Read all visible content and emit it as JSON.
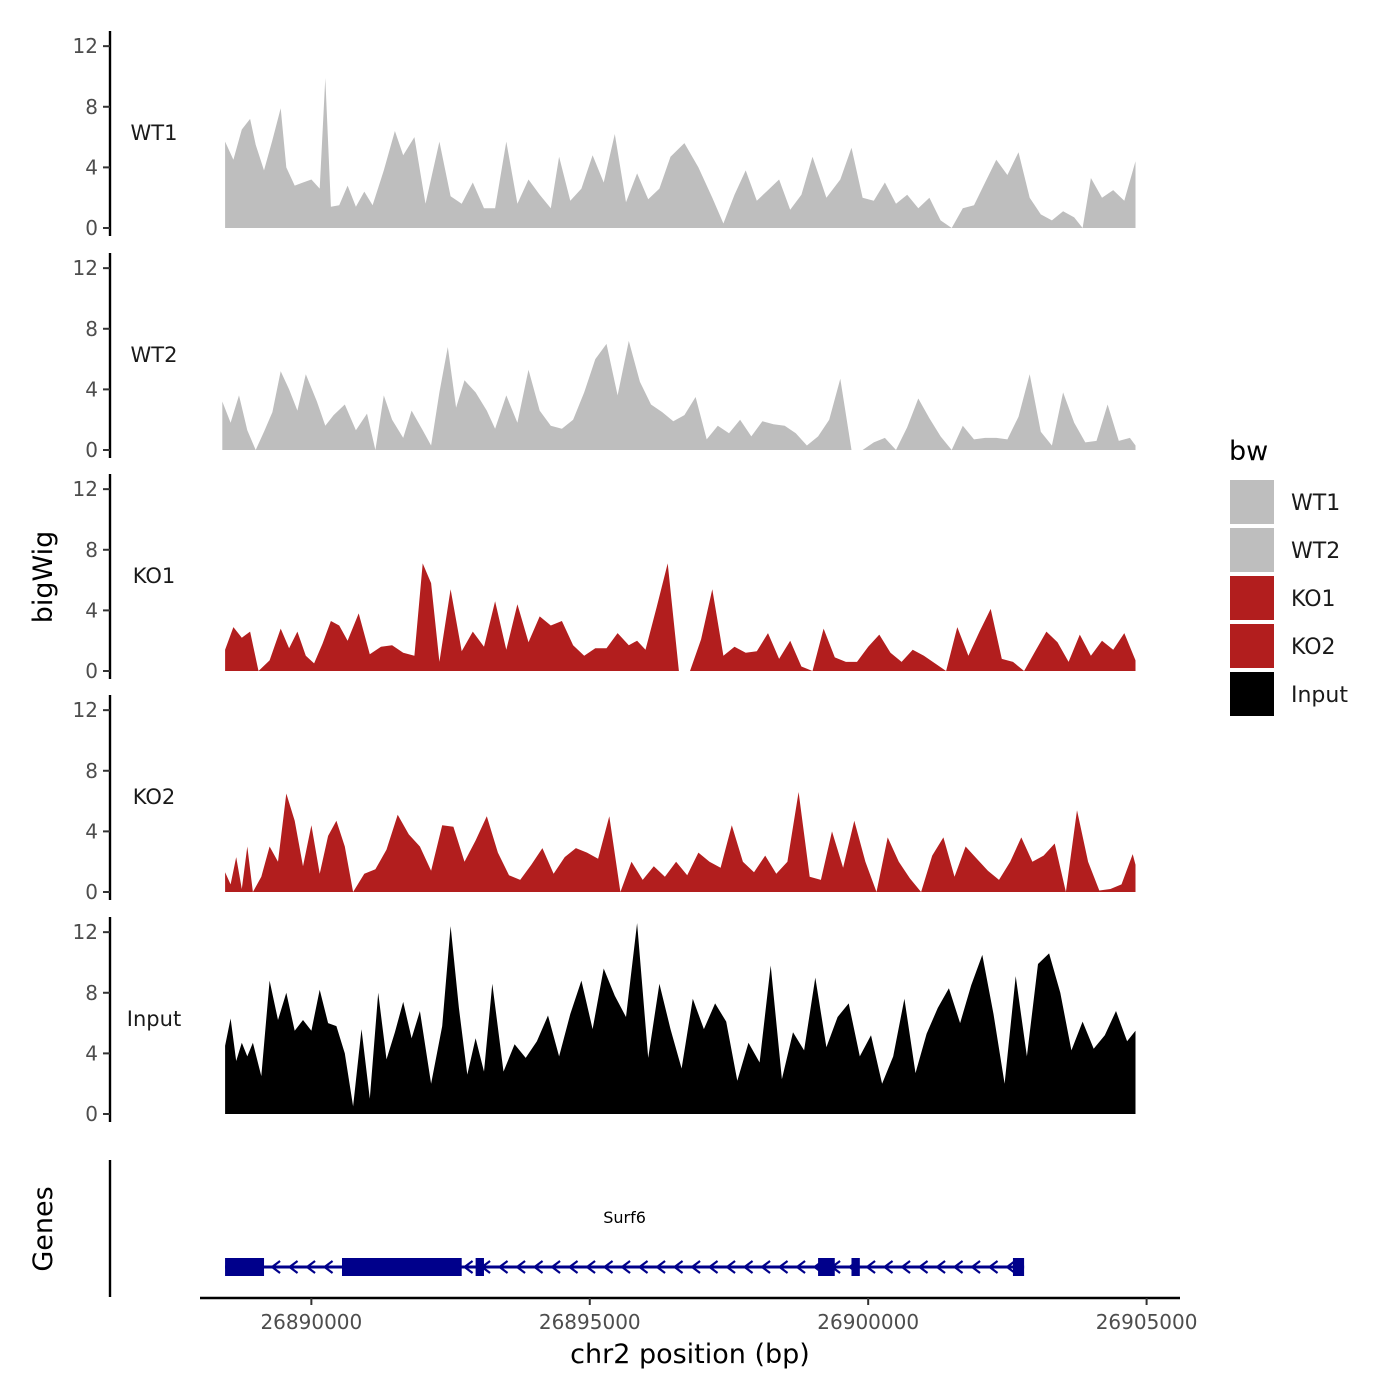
{
  "chart_data": {
    "type": "area",
    "title": "",
    "xlabel": "chr2 position (bp)",
    "ylabel": "bigWig",
    "genes_panel_label": "Genes",
    "xlim": [
      26888000,
      26905600
    ],
    "x_ticks": [
      26890000,
      26895000,
      26900000,
      26905000
    ],
    "x_tick_labels": [
      "26890000",
      "26895000",
      "26900000",
      "26905000"
    ],
    "ylim": [
      0,
      13
    ],
    "y_ticks": [
      0,
      4,
      8,
      12
    ],
    "y_tick_labels": [
      "0",
      "4",
      "8",
      "12"
    ],
    "legend": {
      "title": "bw",
      "position": "right",
      "entries": [
        {
          "label": "WT1",
          "color": "#bebebe"
        },
        {
          "label": "WT2",
          "color": "#bebebe"
        },
        {
          "label": "KO1",
          "color": "#b21e1e"
        },
        {
          "label": "KO2",
          "color": "#b21e1e"
        },
        {
          "label": "Input",
          "color": "#000000"
        }
      ]
    },
    "series": [
      {
        "name": "WT1",
        "color": "#bebebe",
        "x": [
          26888450,
          26888600,
          26888750,
          26888900,
          26889000,
          26889150,
          26889300,
          26889450,
          26889550,
          26889700,
          26889850,
          26890000,
          26890150,
          26890250,
          26890350,
          26890500,
          26890650,
          26890800,
          26890950,
          26891100,
          26891300,
          26891500,
          26891650,
          26891850,
          26892050,
          26892300,
          26892500,
          26892700,
          26892900,
          26893100,
          26893300,
          26893500,
          26893700,
          26893900,
          26894100,
          26894300,
          26894450,
          26894650,
          26894850,
          26895050,
          26895250,
          26895450,
          26895650,
          26895850,
          26896050,
          26896250,
          26896450,
          26896700,
          26896950,
          26897200,
          26897400,
          26897600,
          26897800,
          26898000,
          26898200,
          26898400,
          26898600,
          26898800,
          26899000,
          26899250,
          26899500,
          26899700,
          26899900,
          26900100,
          26900300,
          26900500,
          26900700,
          26900900,
          26901100,
          26901300,
          26901500,
          26901700,
          26901900,
          26902100,
          26902300,
          26902500,
          26902700,
          26902900,
          26903100,
          26903300,
          26903500,
          26903700,
          26903850,
          26904000,
          26904200,
          26904400,
          26904600,
          26904800
        ],
        "values": [
          5.7,
          4.5,
          6.5,
          7.2,
          5.5,
          3.8,
          5.8,
          7.9,
          4.0,
          2.8,
          3.0,
          3.2,
          2.6,
          9.9,
          1.4,
          1.5,
          2.8,
          1.4,
          2.4,
          1.5,
          3.8,
          6.4,
          4.8,
          6.0,
          1.6,
          5.7,
          2.1,
          1.6,
          3.0,
          1.3,
          1.3,
          5.7,
          1.6,
          3.2,
          2.2,
          1.3,
          4.7,
          1.8,
          2.6,
          4.8,
          3.0,
          6.2,
          1.7,
          3.6,
          1.9,
          2.6,
          4.7,
          5.6,
          4.0,
          2.0,
          0.3,
          2.2,
          3.8,
          1.8,
          2.5,
          3.2,
          1.2,
          2.2,
          4.7,
          2.0,
          3.2,
          5.3,
          2.0,
          1.8,
          3.0,
          1.6,
          2.2,
          1.3,
          2.0,
          0.5,
          0.0,
          1.3,
          1.5,
          3.0,
          4.5,
          3.5,
          5.0,
          2.0,
          0.9,
          0.5,
          1.1,
          0.7,
          0.0,
          3.3,
          2.0,
          2.5,
          1.8,
          4.4
        ]
      },
      {
        "name": "WT2",
        "color": "#bebebe",
        "x": [
          26888400,
          26888550,
          26888700,
          26888850,
          26889000,
          26889150,
          26889300,
          26889450,
          26889600,
          26889750,
          26889900,
          26890100,
          26890250,
          26890400,
          26890600,
          26890800,
          26891000,
          26891150,
          26891300,
          26891450,
          26891650,
          26891800,
          26892000,
          26892150,
          26892300,
          26892450,
          26892600,
          26892750,
          26892950,
          26893150,
          26893300,
          26893500,
          26893700,
          26893900,
          26894100,
          26894300,
          26894500,
          26894700,
          26894900,
          26895100,
          26895300,
          26895500,
          26895700,
          26895900,
          26896100,
          26896300,
          26896500,
          26896700,
          26896900,
          26897100,
          26897300,
          26897500,
          26897700,
          26897900,
          26898100,
          26898300,
          26898500,
          26898700,
          26898900,
          26899100,
          26899300,
          26899500,
          26899700,
          26899900,
          26900100,
          26900300,
          26900500,
          26900700,
          26900900,
          26901100,
          26901300,
          26901500,
          26901700,
          26901900,
          26902100,
          26902300,
          26902500,
          26902700,
          26902900,
          26903100,
          26903300,
          26903500,
          26903700,
          26903900,
          26904100,
          26904300,
          26904500,
          26904700,
          26904800
        ],
        "values": [
          3.2,
          1.8,
          3.6,
          1.3,
          0.0,
          1.2,
          2.5,
          5.2,
          4.0,
          2.6,
          5.0,
          3.2,
          1.6,
          2.3,
          3.0,
          1.3,
          2.4,
          0.0,
          3.6,
          2.0,
          0.8,
          2.6,
          1.3,
          0.3,
          3.8,
          6.8,
          2.8,
          4.6,
          3.8,
          2.6,
          1.4,
          3.6,
          1.8,
          5.3,
          2.6,
          1.6,
          1.4,
          2.0,
          3.8,
          6.0,
          7.0,
          3.6,
          7.2,
          4.5,
          3.0,
          2.5,
          1.9,
          2.3,
          3.5,
          0.7,
          1.6,
          1.1,
          2.0,
          0.9,
          1.9,
          1.7,
          1.6,
          1.1,
          0.3,
          0.9,
          2.0,
          4.7,
          0.0,
          0.0,
          0.5,
          0.8,
          0.0,
          1.5,
          3.4,
          2.1,
          0.9,
          0.0,
          1.6,
          0.7,
          0.8,
          0.8,
          0.7,
          2.2,
          5.0,
          1.2,
          0.3,
          3.8,
          1.8,
          0.5,
          0.6,
          3.0,
          0.6,
          0.8,
          0.3
        ]
      },
      {
        "name": "KO1",
        "color": "#b21e1e",
        "x": [
          26888450,
          26888600,
          26888750,
          26888900,
          26889050,
          26889250,
          26889450,
          26889600,
          26889750,
          26889900,
          26890050,
          26890200,
          26890350,
          26890500,
          26890650,
          26890850,
          26891050,
          26891250,
          26891450,
          26891650,
          26891850,
          26892000,
          26892150,
          26892300,
          26892500,
          26892700,
          26892900,
          26893100,
          26893300,
          26893500,
          26893700,
          26893900,
          26894100,
          26894300,
          26894500,
          26894700,
          26894900,
          26895100,
          26895300,
          26895500,
          26895700,
          26895850,
          26896000,
          26896200,
          26896400,
          26896600,
          26896800,
          26897000,
          26897200,
          26897400,
          26897600,
          26897800,
          26898000,
          26898200,
          26898400,
          26898600,
          26898800,
          26899000,
          26899200,
          26899400,
          26899600,
          26899800,
          26900000,
          26900200,
          26900400,
          26900600,
          26900800,
          26901000,
          26901200,
          26901400,
          26901600,
          26901800,
          26902000,
          26902200,
          26902400,
          26902600,
          26902800,
          26903000,
          26903200,
          26903400,
          26903600,
          26903800,
          26904000,
          26904200,
          26904400,
          26904600,
          26904800
        ],
        "values": [
          1.4,
          2.9,
          2.2,
          2.6,
          0.0,
          0.7,
          2.8,
          1.5,
          2.6,
          1.0,
          0.5,
          1.8,
          3.3,
          3.0,
          2.0,
          3.8,
          1.1,
          1.6,
          1.7,
          1.2,
          1.0,
          7.1,
          5.8,
          0.6,
          5.4,
          1.3,
          2.6,
          1.6,
          4.6,
          1.4,
          4.4,
          1.9,
          3.6,
          3.0,
          3.3,
          1.7,
          1.0,
          1.5,
          1.5,
          2.5,
          1.7,
          2.0,
          1.4,
          4.2,
          7.1,
          0.0,
          0.0,
          2.1,
          5.4,
          1.0,
          1.6,
          1.2,
          1.3,
          2.5,
          0.8,
          2.0,
          0.3,
          0.0,
          2.8,
          0.9,
          0.6,
          0.6,
          1.6,
          2.4,
          1.2,
          0.6,
          1.4,
          1.0,
          0.5,
          0.0,
          2.9,
          1.0,
          2.6,
          4.1,
          0.8,
          0.6,
          0.0,
          1.3,
          2.6,
          1.9,
          0.6,
          2.4,
          1.0,
          2.0,
          1.4,
          2.5,
          0.7
        ]
      },
      {
        "name": "KO2",
        "color": "#b21e1e",
        "x": [
          26888450,
          26888550,
          26888650,
          26888750,
          26888850,
          26888950,
          26889100,
          26889250,
          26889400,
          26889550,
          26889700,
          26889850,
          26890000,
          26890150,
          26890300,
          26890450,
          26890600,
          26890750,
          26890950,
          26891150,
          26891350,
          26891550,
          26891750,
          26891950,
          26892150,
          26892350,
          26892550,
          26892750,
          26892950,
          26893150,
          26893350,
          26893550,
          26893750,
          26893950,
          26894150,
          26894350,
          26894550,
          26894750,
          26894950,
          26895150,
          26895350,
          26895550,
          26895750,
          26895950,
          26896150,
          26896350,
          26896550,
          26896750,
          26896950,
          26897150,
          26897350,
          26897550,
          26897750,
          26897950,
          26898150,
          26898350,
          26898550,
          26898750,
          26898950,
          26899150,
          26899350,
          26899550,
          26899750,
          26899950,
          26900150,
          26900350,
          26900550,
          26900750,
          26900950,
          26901150,
          26901350,
          26901550,
          26901750,
          26901950,
          26902150,
          26902350,
          26902550,
          26902750,
          26902950,
          26903150,
          26903350,
          26903550,
          26903750,
          26903950,
          26904150,
          26904350,
          26904550,
          26904750,
          26904800
        ],
        "values": [
          1.3,
          0.5,
          2.3,
          0.2,
          3.0,
          0.0,
          1.0,
          3.0,
          2.0,
          6.5,
          4.7,
          1.7,
          4.4,
          1.2,
          3.7,
          4.7,
          3.0,
          0.0,
          1.2,
          1.5,
          2.8,
          5.1,
          3.8,
          3.0,
          1.4,
          4.4,
          4.3,
          2.0,
          3.4,
          5.0,
          2.6,
          1.1,
          0.8,
          1.8,
          2.9,
          1.2,
          2.3,
          2.9,
          2.6,
          2.2,
          5.0,
          0.0,
          2.0,
          0.8,
          1.7,
          1.0,
          2.0,
          1.1,
          2.6,
          2.0,
          1.6,
          4.4,
          2.0,
          1.3,
          2.4,
          1.2,
          2.0,
          6.6,
          1.0,
          0.8,
          4.0,
          1.6,
          4.7,
          2.0,
          0.0,
          3.6,
          2.0,
          0.9,
          0.0,
          2.4,
          3.6,
          1.0,
          3.0,
          2.2,
          1.4,
          0.8,
          2.0,
          3.6,
          2.0,
          2.4,
          3.2,
          0.0,
          5.4,
          2.0,
          0.1,
          0.2,
          0.5,
          2.5,
          1.8
        ]
      },
      {
        "name": "Input",
        "color": "#000000",
        "x": [
          26888450,
          26888550,
          26888650,
          26888750,
          26888850,
          26888950,
          26889100,
          26889250,
          26889400,
          26889550,
          26889700,
          26889850,
          26890000,
          26890150,
          26890300,
          26890450,
          26890600,
          26890750,
          26890900,
          26891050,
          26891200,
          26891350,
          26891500,
          26891650,
          26891800,
          26891950,
          26892150,
          26892350,
          26892500,
          26892650,
          26892800,
          26892950,
          26893100,
          26893250,
          26893450,
          26893650,
          26893850,
          26894050,
          26894250,
          26894450,
          26894650,
          26894850,
          26895050,
          26895250,
          26895450,
          26895650,
          26895850,
          26896050,
          26896250,
          26896450,
          26896650,
          26896850,
          26897050,
          26897250,
          26897450,
          26897650,
          26897850,
          26898050,
          26898250,
          26898450,
          26898650,
          26898850,
          26899050,
          26899250,
          26899450,
          26899650,
          26899850,
          26900050,
          26900250,
          26900450,
          26900650,
          26900850,
          26901050,
          26901250,
          26901450,
          26901650,
          26901850,
          26902050,
          26902250,
          26902450,
          26902650,
          26902850,
          26903050,
          26903250,
          26903450,
          26903650,
          26903850,
          26904050,
          26904250,
          26904450,
          26904650,
          26904800
        ],
        "values": [
          4.5,
          6.3,
          3.5,
          4.7,
          3.8,
          4.7,
          2.5,
          8.8,
          6.2,
          8.0,
          5.5,
          6.2,
          5.5,
          8.2,
          6.0,
          5.8,
          4.0,
          0.5,
          5.6,
          1.0,
          8.0,
          3.6,
          5.4,
          7.4,
          5.0,
          6.8,
          2.0,
          5.8,
          12.4,
          7.0,
          2.6,
          5.0,
          2.8,
          8.6,
          2.8,
          4.6,
          3.7,
          4.8,
          6.5,
          3.8,
          6.6,
          8.8,
          5.6,
          9.6,
          7.8,
          6.4,
          12.6,
          3.7,
          8.6,
          5.6,
          3.0,
          7.6,
          5.6,
          7.3,
          6.1,
          2.2,
          4.7,
          3.4,
          9.8,
          2.3,
          5.4,
          4.2,
          9.0,
          4.4,
          6.4,
          7.3,
          3.8,
          5.2,
          2.0,
          3.8,
          7.6,
          2.7,
          5.3,
          7.0,
          8.3,
          6.0,
          8.5,
          10.5,
          6.6,
          2.0,
          9.1,
          3.8,
          9.9,
          10.6,
          8.0,
          4.2,
          6.1,
          4.3,
          5.2,
          6.8,
          4.8,
          5.5
        ]
      }
    ],
    "genes": [
      {
        "name": "Surf6",
        "strand": "-",
        "start": 26888450,
        "end": 26902800,
        "exons": [
          [
            26888450,
            26889150
          ],
          [
            26890550,
            26892700
          ],
          [
            26892950,
            26893100
          ],
          [
            26899100,
            26899400
          ],
          [
            26899700,
            26899850
          ],
          [
            26902600,
            26902800
          ]
        ]
      }
    ]
  }
}
